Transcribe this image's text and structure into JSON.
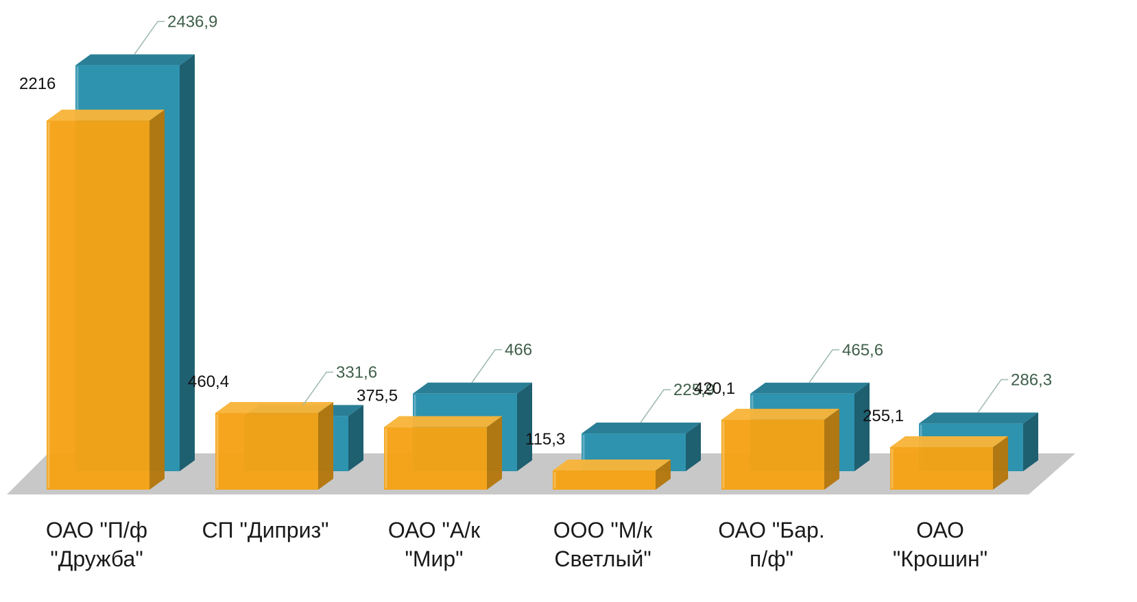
{
  "chart_data": {
    "type": "bar",
    "style": "3d-clustered-column",
    "categories": [
      [
        "ОАО \"П/ф",
        "\"Дружба\""
      ],
      [
        "СП \"Диприз\""
      ],
      [
        "ОАО \"А/к",
        "\"Мир\""
      ],
      [
        "ООО \"М/к",
        "Светлый\""
      ],
      [
        "ОАО \"Бар.",
        "п/ф\""
      ],
      [
        "ОАО",
        "\"Крошин\""
      ]
    ],
    "series": [
      {
        "values": [
          2216,
          460.4,
          375.5,
          115.3,
          420.1,
          255.1
        ],
        "labels": [
          "2216",
          "460,4",
          "375,5",
          "115,3",
          "420,1",
          "255,1"
        ]
      },
      {
        "values": [
          2436.9,
          331.6,
          466,
          225.9,
          465.6,
          286.3
        ],
        "labels": [
          "2436,9",
          "331,6",
          "466",
          "225,9",
          "465,6",
          "286,3"
        ]
      }
    ],
    "colors": {
      "front_face": "#f5a315",
      "front_side": "#b5770d",
      "front_top": "#f8b53a",
      "back_face": "#2e93ae",
      "back_side": "#1e5f70",
      "back_top": "#2a7f96",
      "floor": "#c8c8c8",
      "leader": "#9ab8ad"
    },
    "ylim": [
      0,
      2500
    ],
    "grid": false,
    "legend": "none"
  }
}
